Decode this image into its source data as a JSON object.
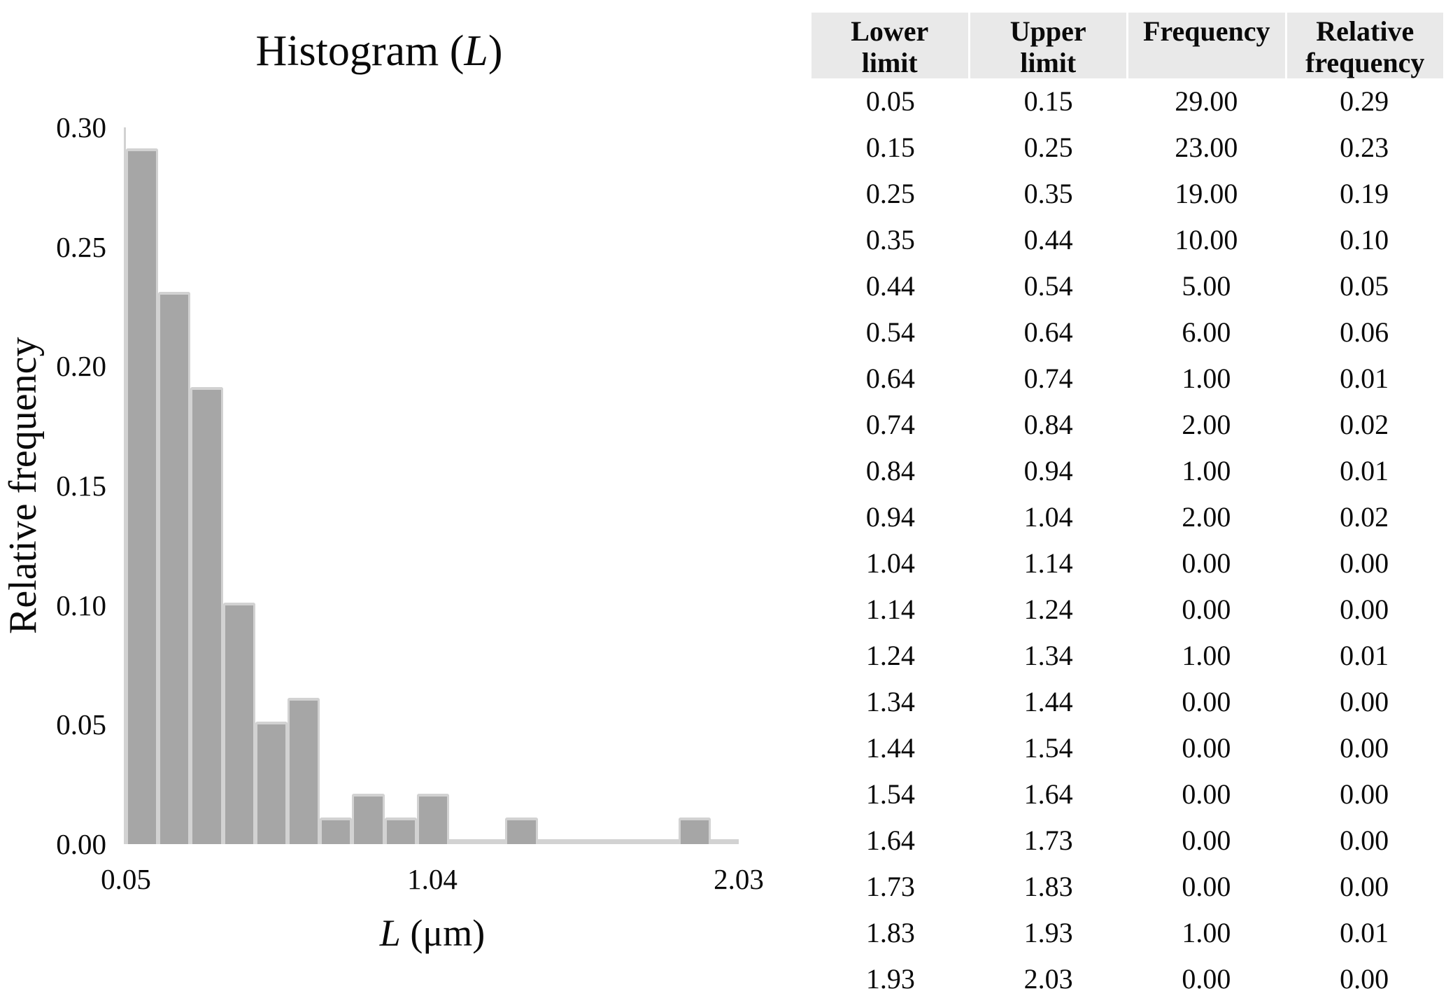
{
  "chart_data": {
    "type": "bar",
    "title": "Histogram (L)",
    "title_prefix": "Histogram (",
    "title_var": "L",
    "title_suffix": ")",
    "ylabel": "Relative frequency",
    "xlabel": "L (μm)",
    "xlabel_var": "L",
    "xlabel_rest": " (μm)",
    "ylim": [
      0,
      0.3
    ],
    "y_tick_labels": [
      "0.30",
      "0.25",
      "0.20",
      "0.15",
      "0.10",
      "0.05",
      "0.00"
    ],
    "x_tick_labels": [
      "0.05",
      "1.04",
      "2.03"
    ],
    "bin_edges": [
      0.05,
      0.15,
      0.25,
      0.35,
      0.44,
      0.54,
      0.64,
      0.74,
      0.84,
      0.94,
      1.04,
      1.14,
      1.24,
      1.34,
      1.44,
      1.54,
      1.64,
      1.73,
      1.83,
      1.93,
      2.03
    ],
    "values": [
      0.29,
      0.23,
      0.19,
      0.1,
      0.05,
      0.06,
      0.01,
      0.02,
      0.01,
      0.02,
      0.0,
      0.0,
      0.01,
      0.0,
      0.0,
      0.0,
      0.0,
      0.0,
      0.01,
      0.0
    ],
    "bar_color": "#a6a6a6",
    "bar_edge_color": "#d2d2d2",
    "grid": false,
    "legend": false
  },
  "table": {
    "header_bg": "#e9e9e9",
    "headers": [
      "Lower\nlimit",
      "Upper\nlimit",
      "Frequency",
      "Relative\nfrequency"
    ],
    "rows": [
      [
        "0.05",
        "0.15",
        "29.00",
        "0.29"
      ],
      [
        "0.15",
        "0.25",
        "23.00",
        "0.23"
      ],
      [
        "0.25",
        "0.35",
        "19.00",
        "0.19"
      ],
      [
        "0.35",
        "0.44",
        "10.00",
        "0.10"
      ],
      [
        "0.44",
        "0.54",
        "5.00",
        "0.05"
      ],
      [
        "0.54",
        "0.64",
        "6.00",
        "0.06"
      ],
      [
        "0.64",
        "0.74",
        "1.00",
        "0.01"
      ],
      [
        "0.74",
        "0.84",
        "2.00",
        "0.02"
      ],
      [
        "0.84",
        "0.94",
        "1.00",
        "0.01"
      ],
      [
        "0.94",
        "1.04",
        "2.00",
        "0.02"
      ],
      [
        "1.04",
        "1.14",
        "0.00",
        "0.00"
      ],
      [
        "1.14",
        "1.24",
        "0.00",
        "0.00"
      ],
      [
        "1.24",
        "1.34",
        "1.00",
        "0.01"
      ],
      [
        "1.34",
        "1.44",
        "0.00",
        "0.00"
      ],
      [
        "1.44",
        "1.54",
        "0.00",
        "0.00"
      ],
      [
        "1.54",
        "1.64",
        "0.00",
        "0.00"
      ],
      [
        "1.64",
        "1.73",
        "0.00",
        "0.00"
      ],
      [
        "1.73",
        "1.83",
        "0.00",
        "0.00"
      ],
      [
        "1.83",
        "1.93",
        "1.00",
        "0.01"
      ],
      [
        "1.93",
        "2.03",
        "0.00",
        "0.00"
      ]
    ]
  }
}
